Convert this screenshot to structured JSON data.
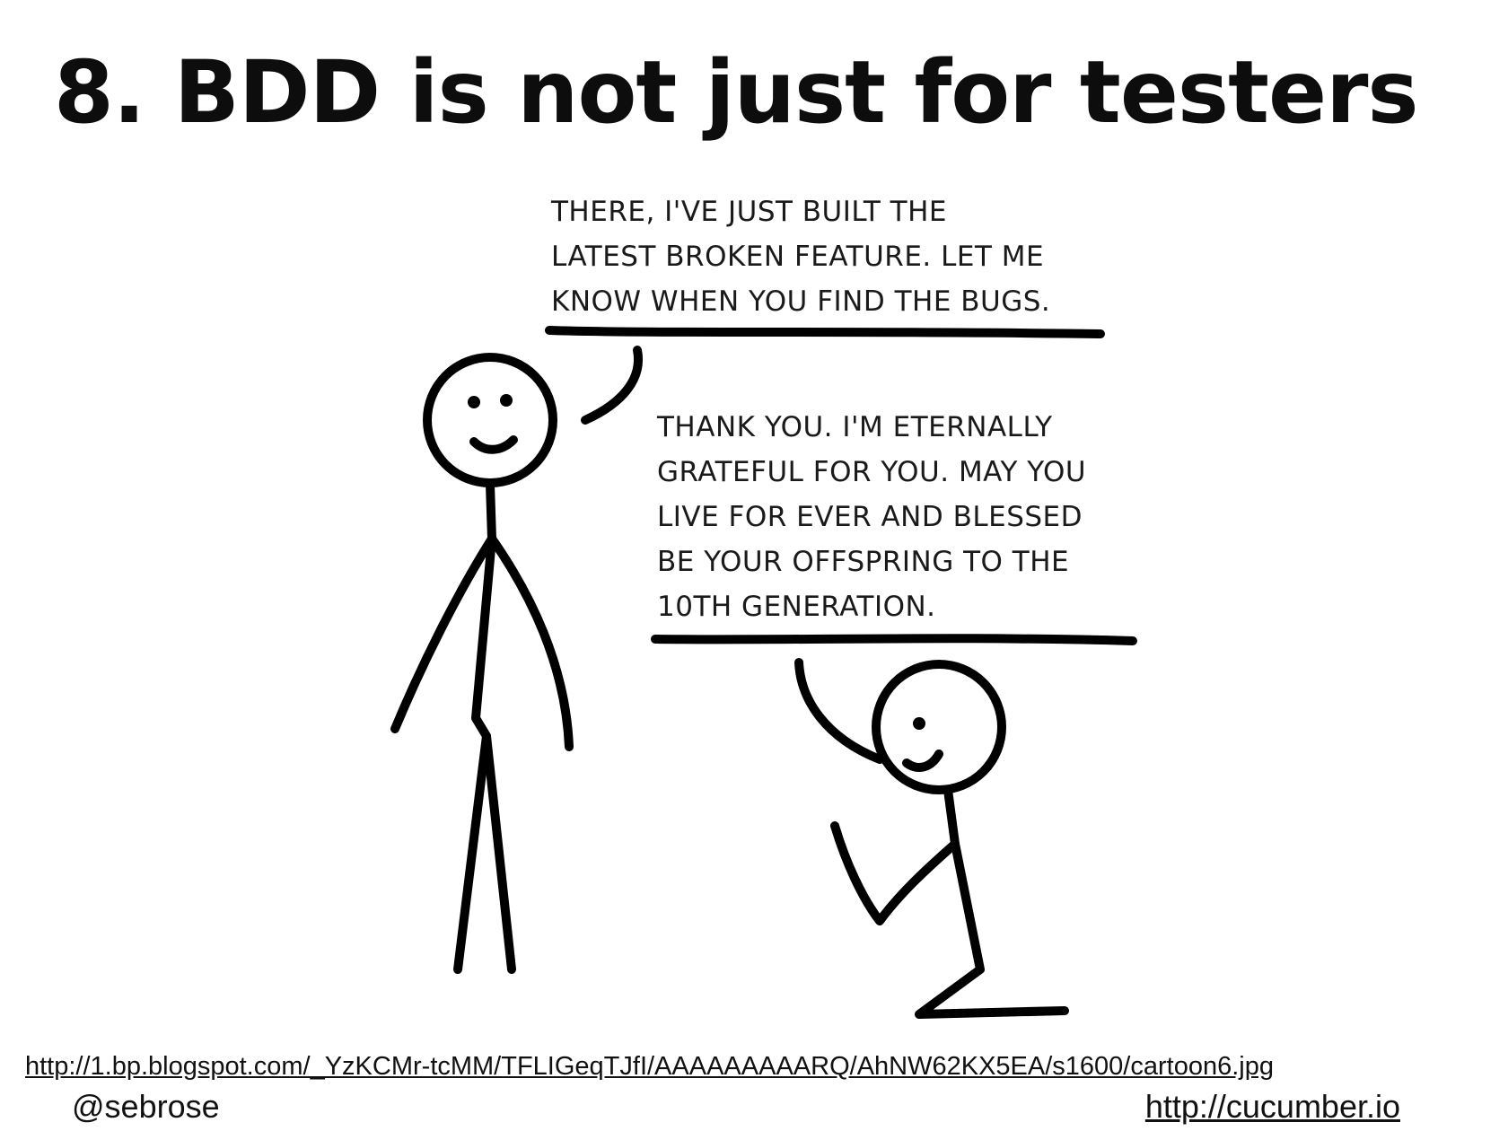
{
  "slide": {
    "title": "8. BDD is not just for testers"
  },
  "cartoon": {
    "speech_1": [
      "THERE, I'VE JUST BUILT THE",
      "LATEST BROKEN FEATURE. LET ME",
      "KNOW WHEN YOU FIND THE BUGS."
    ],
    "speech_2": [
      "THANK YOU. I'M ETERNALLY",
      "GRATEFUL FOR YOU. MAY YOU",
      "LIVE FOR EVER AND BLESSED",
      "BE YOUR OFFSPRING TO THE",
      "10TH GENERATION."
    ]
  },
  "footer": {
    "source_url": "http://1.bp.blogspot.com/_YzKCMr-tcMM/TFLIGeqTJfI/AAAAAAAAARQ/AhNW62KX5EA/s1600/cartoon6.jpg",
    "handle": "@sebrose",
    "site": "http://cucumber.io"
  }
}
